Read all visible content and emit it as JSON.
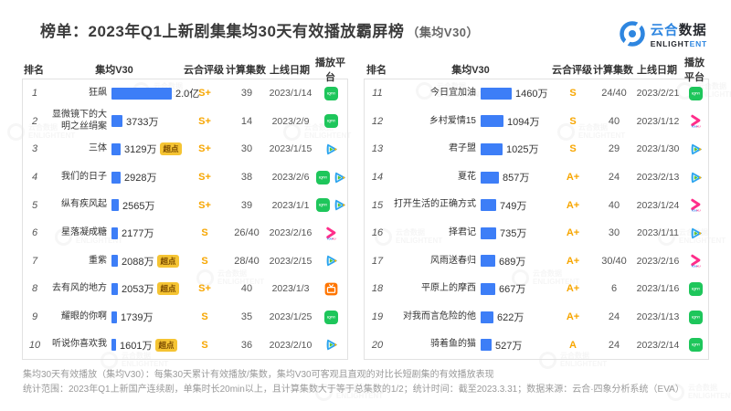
{
  "header": {
    "title": "榜单：2023年Q1上新剧集集均30天有效播放霸屏榜",
    "subtitle": "（集均V30）",
    "logo": {
      "cn_blue": "云合",
      "cn_dark": "数据",
      "en_dark": "ENLIGHT",
      "en_blue": "ENT"
    }
  },
  "watermark": {
    "line1": "云合数据",
    "line2": "ENLIGHTENT"
  },
  "columns": [
    "排名",
    "集均V30",
    "云合评级",
    "计算集数",
    "上线日期",
    "播放平台"
  ],
  "badge_label": "超点",
  "colors": {
    "bar_blue": "#3D7EF7",
    "rating_orange": "#F7A600",
    "badge_yellow": "#F5C433",
    "logo_blue": "#2E86E0",
    "iqiyi_green": "#1EC65B",
    "mgtv_orange": "#FF7500",
    "youku_pink": "#FF2D8A",
    "tencent_blue": "#2BA4EE"
  },
  "platform_names": {
    "iqiyi": "爱奇艺",
    "tencent": "腾讯视频",
    "youku": "优酷",
    "mgtv": "芒果TV"
  },
  "tables": [
    {
      "rows": [
        {
          "rank": "1",
          "title": "狂飙",
          "value_label": "2.0亿",
          "value_wan": 20000,
          "badge": false,
          "rating": "S+",
          "episodes": "39",
          "date": "2023/1/14",
          "platforms": [
            "iqiyi"
          ]
        },
        {
          "rank": "2",
          "title": "显微镜下的大明之丝绢案",
          "value_label": "3733万",
          "value_wan": 3733,
          "badge": false,
          "rating": "S+",
          "episodes": "14",
          "date": "2023/2/9",
          "platforms": [
            "iqiyi"
          ]
        },
        {
          "rank": "3",
          "title": "三体",
          "value_label": "3129万",
          "value_wan": 3129,
          "badge": true,
          "rating": "S+",
          "episodes": "30",
          "date": "2023/1/15",
          "platforms": [
            "tencent"
          ]
        },
        {
          "rank": "4",
          "title": "我们的日子",
          "value_label": "2928万",
          "value_wan": 2928,
          "badge": false,
          "rating": "S+",
          "episodes": "38",
          "date": "2023/2/6",
          "platforms": [
            "iqiyi",
            "tencent"
          ]
        },
        {
          "rank": "5",
          "title": "纵有疾风起",
          "value_label": "2565万",
          "value_wan": 2565,
          "badge": false,
          "rating": "S+",
          "episodes": "39",
          "date": "2023/1/1",
          "platforms": [
            "iqiyi",
            "tencent"
          ]
        },
        {
          "rank": "6",
          "title": "星落凝成糖",
          "value_label": "2177万",
          "value_wan": 2177,
          "badge": false,
          "rating": "S",
          "episodes": "26/40",
          "date": "2023/2/16",
          "platforms": [
            "youku"
          ]
        },
        {
          "rank": "7",
          "title": "重紫",
          "value_label": "2088万",
          "value_wan": 2088,
          "badge": true,
          "rating": "S",
          "episodes": "28/40",
          "date": "2023/2/15",
          "platforms": [
            "tencent"
          ]
        },
        {
          "rank": "8",
          "title": "去有风的地方",
          "value_label": "2053万",
          "value_wan": 2053,
          "badge": true,
          "rating": "S+",
          "episodes": "40",
          "date": "2023/1/3",
          "platforms": [
            "mgtv"
          ]
        },
        {
          "rank": "9",
          "title": "耀眼的你啊",
          "value_label": "1739万",
          "value_wan": 1739,
          "badge": false,
          "rating": "S",
          "episodes": "35",
          "date": "2023/1/25",
          "platforms": [
            "iqiyi"
          ]
        },
        {
          "rank": "10",
          "title": "听说你喜欢我",
          "value_label": "1601万",
          "value_wan": 1601,
          "badge": true,
          "rating": "S",
          "episodes": "36",
          "date": "2023/2/10",
          "platforms": [
            "tencent"
          ]
        }
      ]
    },
    {
      "rows": [
        {
          "rank": "11",
          "title": "今日宜加油",
          "value_label": "1460万",
          "value_wan": 1460,
          "badge": false,
          "rating": "S",
          "episodes": "24/40",
          "date": "2023/2/21",
          "platforms": [
            "iqiyi"
          ]
        },
        {
          "rank": "12",
          "title": "乡村爱情15",
          "value_label": "1094万",
          "value_wan": 1094,
          "badge": false,
          "rating": "S",
          "episodes": "40",
          "date": "2023/1/12",
          "platforms": [
            "youku"
          ]
        },
        {
          "rank": "13",
          "title": "君子盟",
          "value_label": "1025万",
          "value_wan": 1025,
          "badge": false,
          "rating": "S",
          "episodes": "29",
          "date": "2023/1/30",
          "platforms": [
            "tencent"
          ]
        },
        {
          "rank": "14",
          "title": "夏花",
          "value_label": "857万",
          "value_wan": 857,
          "badge": false,
          "rating": "A+",
          "episodes": "24",
          "date": "2023/2/13",
          "platforms": [
            "tencent"
          ]
        },
        {
          "rank": "15",
          "title": "打开生活的正确方式",
          "value_label": "749万",
          "value_wan": 749,
          "badge": false,
          "rating": "A+",
          "episodes": "40",
          "date": "2023/1/24",
          "platforms": [
            "youku"
          ]
        },
        {
          "rank": "16",
          "title": "择君记",
          "value_label": "735万",
          "value_wan": 735,
          "badge": false,
          "rating": "A+",
          "episodes": "30",
          "date": "2023/1/11",
          "platforms": [
            "tencent"
          ]
        },
        {
          "rank": "17",
          "title": "风雨送春归",
          "value_label": "689万",
          "value_wan": 689,
          "badge": false,
          "rating": "A+",
          "episodes": "30/40",
          "date": "2023/2/16",
          "platforms": [
            "youku"
          ]
        },
        {
          "rank": "18",
          "title": "平原上的摩西",
          "value_label": "667万",
          "value_wan": 667,
          "badge": false,
          "rating": "A+",
          "episodes": "6",
          "date": "2023/1/16",
          "platforms": [
            "iqiyi"
          ]
        },
        {
          "rank": "19",
          "title": "对我而言危险的他",
          "value_label": "622万",
          "value_wan": 622,
          "badge": false,
          "rating": "A+",
          "episodes": "24",
          "date": "2023/1/13",
          "platforms": [
            "iqiyi"
          ]
        },
        {
          "rank": "20",
          "title": "骑着鱼的猫",
          "value_label": "527万",
          "value_wan": 527,
          "badge": false,
          "rating": "A",
          "episodes": "24",
          "date": "2023/2/14",
          "platforms": [
            "iqiyi"
          ]
        }
      ]
    }
  ],
  "footnotes": [
    "集均30天有效播放（集均V30）：每集30天累计有效播放/集数，集均V30可客观且直观的对比长短剧集的有效播放表现",
    "统计范围：2023年Q1上新国产连续剧，单集时长20min以上，且计算集数大于等于总集数的1/2；统计时间：截至2023.3.31；数据来源：云合·四象分析系统（EVA）"
  ],
  "chart_data": {
    "type": "bar",
    "title": "榜单：2023年Q1上新剧集集均30天有效播放霸屏榜（集均V30）",
    "unit": "万",
    "categories": [
      "狂飙",
      "显微镜下的大明之丝绢案",
      "三体",
      "我们的日子",
      "纵有疾风起",
      "星落凝成糖",
      "重紫",
      "去有风的地方",
      "耀眼的你啊",
      "听说你喜欢我",
      "今日宜加油",
      "乡村爱情15",
      "君子盟",
      "夏花",
      "打开生活的正确方式",
      "择君记",
      "风雨送春归",
      "平原上的摩西",
      "对我而言危险的他",
      "骑着鱼的猫"
    ],
    "values": [
      20000,
      3733,
      3129,
      2928,
      2565,
      2177,
      2088,
      2053,
      1739,
      1601,
      1460,
      1094,
      1025,
      857,
      749,
      735,
      689,
      667,
      622,
      527
    ],
    "value_labels": [
      "2.0亿",
      "3733万",
      "3129万",
      "2928万",
      "2565万",
      "2177万",
      "2088万",
      "2053万",
      "1739万",
      "1601万",
      "1460万",
      "1094万",
      "1025万",
      "857万",
      "749万",
      "735万",
      "689万",
      "667万",
      "622万",
      "527万"
    ],
    "ratings": [
      "S+",
      "S+",
      "S+",
      "S+",
      "S+",
      "S",
      "S",
      "S+",
      "S",
      "S",
      "S",
      "S",
      "S",
      "A+",
      "A+",
      "A+",
      "A+",
      "A+",
      "A+",
      "A"
    ],
    "episodes": [
      "39",
      "14",
      "30",
      "38",
      "39",
      "26/40",
      "28/40",
      "40",
      "35",
      "36",
      "24/40",
      "40",
      "29",
      "24",
      "40",
      "30",
      "30/40",
      "6",
      "24",
      "24"
    ],
    "dates": [
      "2023/1/14",
      "2023/2/9",
      "2023/1/15",
      "2023/2/6",
      "2023/1/1",
      "2023/2/16",
      "2023/2/15",
      "2023/1/3",
      "2023/1/25",
      "2023/2/10",
      "2023/2/21",
      "2023/1/12",
      "2023/1/30",
      "2023/2/13",
      "2023/1/24",
      "2023/1/11",
      "2023/2/16",
      "2023/1/16",
      "2023/1/13",
      "2023/2/14"
    ],
    "platforms": [
      [
        "爱奇艺"
      ],
      [
        "爱奇艺"
      ],
      [
        "腾讯视频"
      ],
      [
        "爱奇艺",
        "腾讯视频"
      ],
      [
        "爱奇艺",
        "腾讯视频"
      ],
      [
        "优酷"
      ],
      [
        "腾讯视频"
      ],
      [
        "芒果TV"
      ],
      [
        "爱奇艺"
      ],
      [
        "腾讯视频"
      ],
      [
        "爱奇艺"
      ],
      [
        "优酷"
      ],
      [
        "腾讯视频"
      ],
      [
        "腾讯视频"
      ],
      [
        "优酷"
      ],
      [
        "腾讯视频"
      ],
      [
        "优酷"
      ],
      [
        "爱奇艺"
      ],
      [
        "爱奇艺"
      ],
      [
        "爱奇艺"
      ]
    ],
    "premium_badge_rows": [
      3,
      7,
      8,
      10
    ],
    "legend_position": "none",
    "grid": false
  }
}
